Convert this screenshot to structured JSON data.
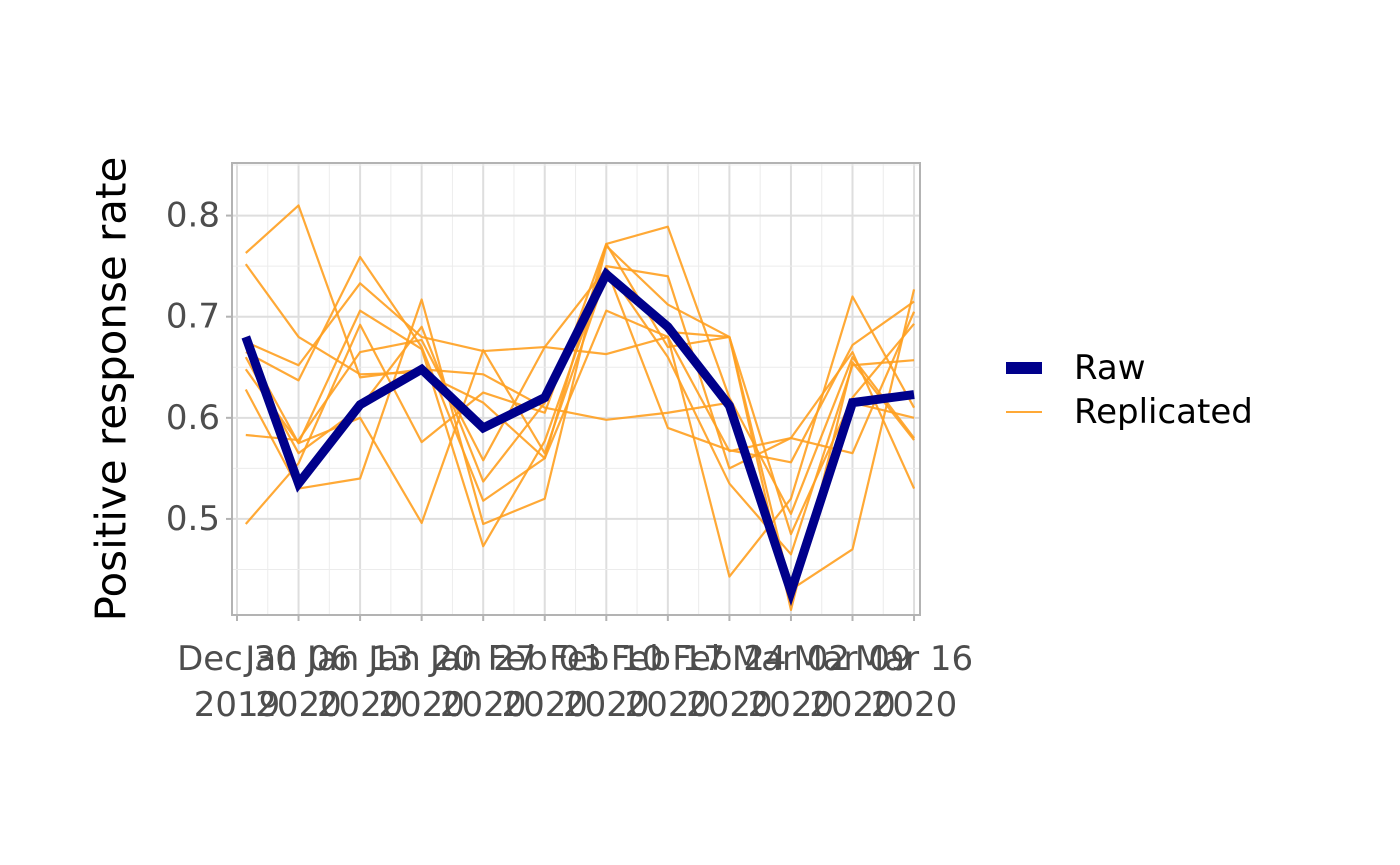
{
  "chart_data": {
    "type": "line",
    "ylabel": "Positive response rate",
    "xlabel": "",
    "ylim": [
      0.405,
      0.852
    ],
    "y_ticks": [
      0.5,
      0.6,
      0.7,
      0.8
    ],
    "y_tick_labels": [
      "0.5",
      "0.6",
      "0.7",
      "0.8"
    ],
    "x": [
      "2019-12-30",
      "2020-01-06",
      "2020-01-13",
      "2020-01-20",
      "2020-01-27",
      "2020-02-03",
      "2020-02-10",
      "2020-02-17",
      "2020-02-24",
      "2020-03-02",
      "2020-03-09",
      "2020-03-16"
    ],
    "x_tick_labels": [
      {
        "line1": "Dec 30",
        "line2": "2019"
      },
      {
        "line1": "Jan 06",
        "line2": "2020"
      },
      {
        "line1": "Jan 13",
        "line2": "2020"
      },
      {
        "line1": "Jan 20",
        "line2": "2020"
      },
      {
        "line1": "Jan 27",
        "line2": "2020"
      },
      {
        "line1": "Feb 03",
        "line2": "2020"
      },
      {
        "line1": "Feb 10",
        "line2": "2020"
      },
      {
        "line1": "Feb 17",
        "line2": "2020"
      },
      {
        "line1": "Feb 24",
        "line2": "2020"
      },
      {
        "line1": "Mar 02",
        "line2": "2020"
      },
      {
        "line1": "Mar 09",
        "line2": "2020"
      },
      {
        "line1": "Mar 16",
        "line2": "2020"
      }
    ],
    "grid": true,
    "legend_position": "right",
    "raw": {
      "name": "Raw",
      "color": "#00008B",
      "dates": [
        "2019-12-31",
        "2020-01-06",
        "2020-01-13",
        "2020-01-20",
        "2020-01-27",
        "2020-02-03",
        "2020-02-10",
        "2020-02-17",
        "2020-02-24",
        "2020-03-02",
        "2020-03-09",
        "2020-03-16"
      ],
      "values": [
        0.68,
        0.535,
        0.613,
        0.648,
        0.59,
        0.62,
        0.742,
        0.69,
        0.612,
        0.428,
        0.615,
        0.623
      ]
    },
    "replicated": {
      "name": "Replicated",
      "color": "#FFA020",
      "dates": [
        "2019-12-31",
        "2020-01-06",
        "2020-01-13",
        "2020-01-20",
        "2020-01-27",
        "2020-02-03",
        "2020-02-10",
        "2020-02-17",
        "2020-02-24",
        "2020-03-02",
        "2020-03-09",
        "2020-03-16"
      ],
      "lines": [
        [
          0.763,
          0.81,
          0.64,
          0.648,
          0.643,
          0.61,
          0.598,
          0.605,
          0.615,
          0.428,
          0.615,
          0.6
        ],
        [
          0.752,
          0.68,
          0.643,
          0.645,
          0.615,
          0.56,
          0.706,
          0.68,
          0.567,
          0.58,
          0.565,
          0.705
        ],
        [
          0.675,
          0.652,
          0.733,
          0.68,
          0.666,
          0.67,
          0.663,
          0.68,
          0.443,
          0.52,
          0.72,
          0.61
        ],
        [
          0.665,
          0.637,
          0.759,
          0.67,
          0.518,
          0.56,
          0.772,
          0.789,
          0.62,
          0.505,
          0.66,
          0.58
        ],
        [
          0.648,
          0.575,
          0.706,
          0.668,
          0.473,
          0.577,
          0.75,
          0.74,
          0.55,
          0.58,
          0.665,
          0.53
        ],
        [
          0.628,
          0.53,
          0.54,
          0.717,
          0.495,
          0.52,
          0.77,
          0.712,
          0.68,
          0.43,
          0.47,
          0.727
        ],
        [
          0.583,
          0.578,
          0.665,
          0.677,
          0.558,
          0.67,
          0.748,
          0.59,
          0.568,
          0.556,
          0.672,
          0.715
        ],
        [
          0.495,
          0.555,
          0.692,
          0.576,
          0.625,
          0.605,
          0.772,
          0.67,
          0.68,
          0.41,
          0.655,
          0.578
        ],
        [
          0.67,
          0.575,
          0.6,
          0.496,
          0.667,
          0.565,
          0.742,
          0.685,
          0.68,
          0.485,
          0.62,
          0.693
        ],
        [
          0.66,
          0.565,
          0.61,
          0.69,
          0.537,
          0.615,
          0.748,
          0.66,
          0.535,
          0.465,
          0.652,
          0.657
        ]
      ]
    }
  }
}
